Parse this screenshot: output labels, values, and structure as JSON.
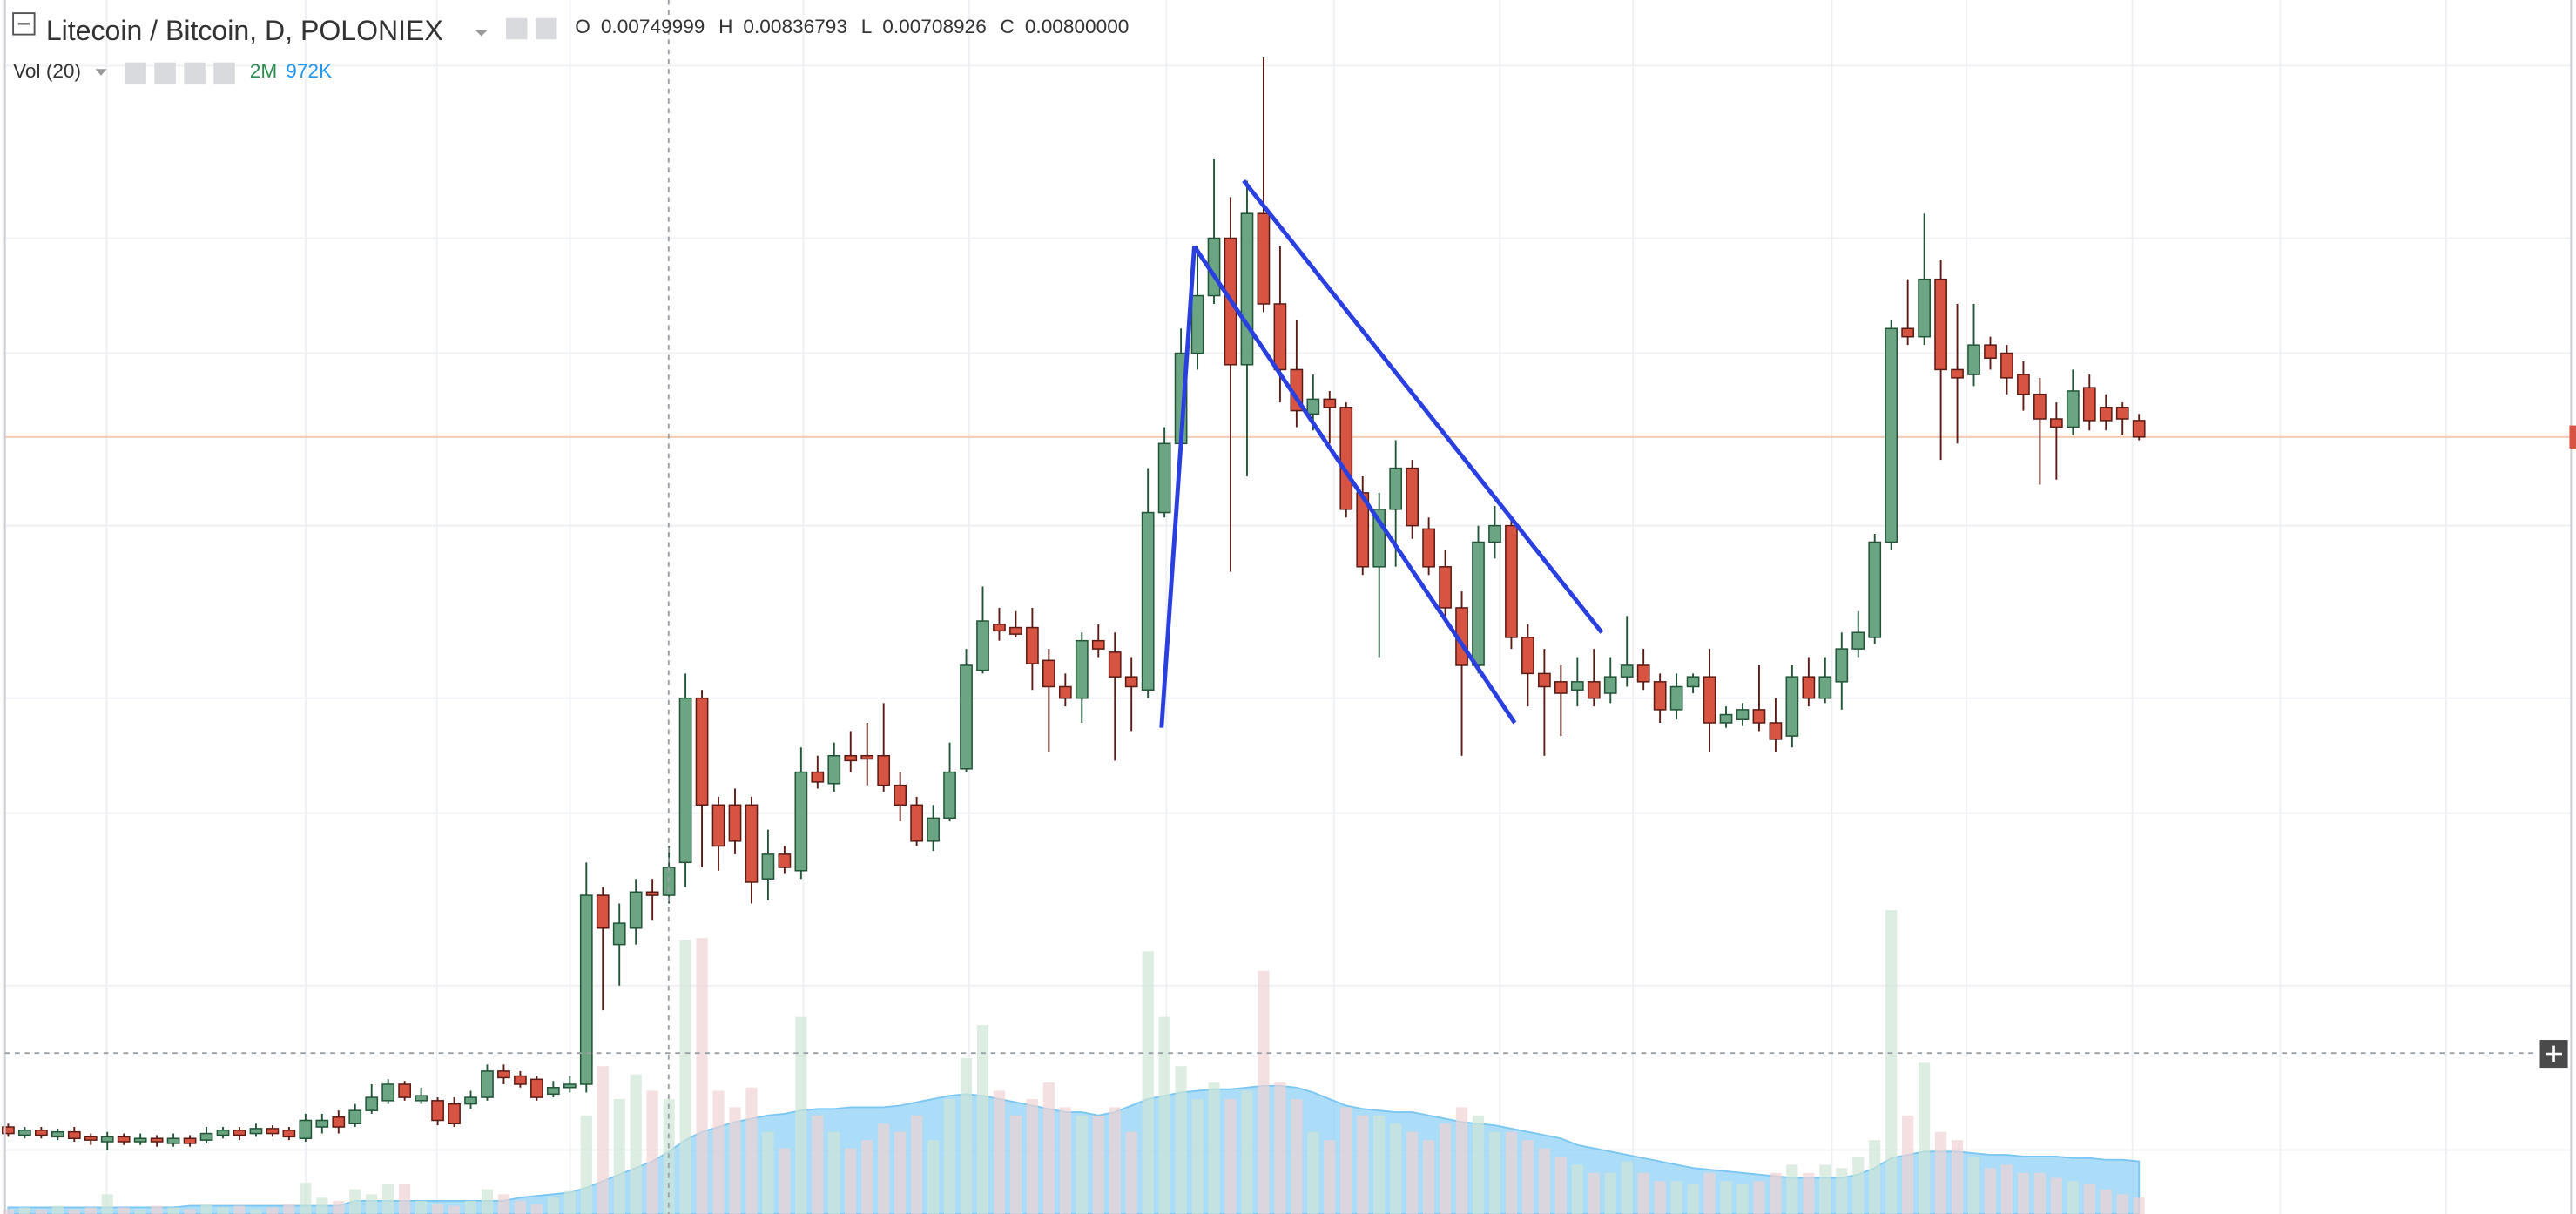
{
  "chart_data": {
    "type": "candlestick",
    "title": "Litecoin / Bitcoin, D, POLONIEX",
    "legend": {
      "ohlc": [
        {
          "label": "O",
          "value": "0.00749999"
        },
        {
          "label": "H",
          "value": "0.00836793"
        },
        {
          "label": "L",
          "value": "0.00708926"
        },
        {
          "label": "C",
          "value": "0.00800000"
        }
      ],
      "volume_title": "Vol (20)",
      "volume_values": [
        "2M",
        "972K"
      ]
    },
    "ylim": [
      0.00233,
      0.0245
    ],
    "y2lim": [
      0,
      18475000
    ],
    "colors": {
      "up": "#6ba583",
      "down": "#d75442",
      "up_border": "#225437",
      "down_border": "#5b1a13",
      "volume_up": "#cfe6d6",
      "volume_down": "#f0d3d3",
      "volume_ma": "#8fd0f5",
      "trendline": "#2a3fe0",
      "last_price": "#f0c8b0"
    },
    "ohlc": [
      [
        0.00392,
        0.00398,
        0.00374,
        0.0038
      ],
      [
        0.00377,
        0.00392,
        0.00371,
        0.00386
      ],
      [
        0.00386,
        0.00392,
        0.00371,
        0.00377
      ],
      [
        0.00374,
        0.00389,
        0.00368,
        0.00383
      ],
      [
        0.00383,
        0.00392,
        0.00365,
        0.00371
      ],
      [
        0.00374,
        0.0038,
        0.00359,
        0.00368
      ],
      [
        0.00365,
        0.00383,
        0.0035,
        0.00374
      ],
      [
        0.00374,
        0.0038,
        0.00359,
        0.00365
      ],
      [
        0.00365,
        0.0038,
        0.00359,
        0.00371
      ],
      [
        0.00371,
        0.00377,
        0.00356,
        0.00365
      ],
      [
        0.00362,
        0.0038,
        0.00356,
        0.00371
      ],
      [
        0.00371,
        0.00377,
        0.00356,
        0.00362
      ],
      [
        0.00368,
        0.00392,
        0.00362,
        0.0038
      ],
      [
        0.00377,
        0.00392,
        0.00371,
        0.00386
      ],
      [
        0.00386,
        0.00392,
        0.00368,
        0.00377
      ],
      [
        0.0038,
        0.00398,
        0.00374,
        0.00389
      ],
      [
        0.00389,
        0.00395,
        0.00374,
        0.0038
      ],
      [
        0.00386,
        0.00392,
        0.00368,
        0.00374
      ],
      [
        0.00371,
        0.00416,
        0.00365,
        0.00404
      ],
      [
        0.00392,
        0.00416,
        0.0038,
        0.00404
      ],
      [
        0.0041,
        0.00422,
        0.0038,
        0.00392
      ],
      [
        0.00398,
        0.00434,
        0.00392,
        0.00422
      ],
      [
        0.00422,
        0.0047,
        0.00416,
        0.00446
      ],
      [
        0.0044,
        0.00479,
        0.00434,
        0.0047
      ],
      [
        0.0047,
        0.00476,
        0.0044,
        0.00446
      ],
      [
        0.0044,
        0.00464,
        0.00434,
        0.00449
      ],
      [
        0.0044,
        0.00446,
        0.00395,
        0.00404
      ],
      [
        0.00434,
        0.00446,
        0.00392,
        0.00398
      ],
      [
        0.00434,
        0.00458,
        0.00425,
        0.00446
      ],
      [
        0.00446,
        0.00506,
        0.0044,
        0.00494
      ],
      [
        0.00494,
        0.00506,
        0.0047,
        0.00482
      ],
      [
        0.00485,
        0.00494,
        0.00464,
        0.0047
      ],
      [
        0.00479,
        0.00485,
        0.0044,
        0.00446
      ],
      [
        0.00452,
        0.00476,
        0.00446,
        0.00464
      ],
      [
        0.00464,
        0.00485,
        0.00455,
        0.0047
      ],
      [
        0.0047,
        0.00875,
        0.00455,
        0.00815
      ],
      [
        0.00815,
        0.0083,
        0.00605,
        0.00755
      ],
      [
        0.00725,
        0.008,
        0.0065,
        0.00764
      ],
      [
        0.00755,
        0.00845,
        0.00725,
        0.00821
      ],
      [
        0.00821,
        0.00845,
        0.0077,
        0.00815
      ],
      [
        0.00815,
        0.00905,
        0.008,
        0.00866
      ],
      [
        0.00875,
        0.0122,
        0.0083,
        0.01175
      ],
      [
        0.01175,
        0.0119,
        0.00866,
        0.0098
      ],
      [
        0.0098,
        0.00995,
        0.0086,
        0.00905
      ],
      [
        0.0098,
        0.0101,
        0.0089,
        0.00914
      ],
      [
        0.0098,
        0.00995,
        0.008,
        0.00839
      ],
      [
        0.00845,
        0.00935,
        0.00806,
        0.0089
      ],
      [
        0.0089,
        0.00905,
        0.00854,
        0.00866
      ],
      [
        0.0086,
        0.01085,
        0.00845,
        0.0104
      ],
      [
        0.0104,
        0.0107,
        0.0101,
        0.01022
      ],
      [
        0.01019,
        0.01094,
        0.01004,
        0.0107
      ],
      [
        0.0107,
        0.01115,
        0.0104,
        0.01061
      ],
      [
        0.0107,
        0.0113,
        0.01016,
        0.01064
      ],
      [
        0.0107,
        0.01166,
        0.01004,
        0.01016
      ],
      [
        0.01016,
        0.0104,
        0.0095,
        0.0098
      ],
      [
        0.0098,
        0.00995,
        0.00905,
        0.00914
      ],
      [
        0.00914,
        0.0098,
        0.00896,
        0.00956
      ],
      [
        0.00956,
        0.01094,
        0.0095,
        0.0104
      ],
      [
        0.01046,
        0.01265,
        0.0104,
        0.01235
      ],
      [
        0.01226,
        0.01379,
        0.0122,
        0.01316
      ],
      [
        0.0131,
        0.0134,
        0.0128,
        0.01298
      ],
      [
        0.01304,
        0.01334,
        0.01286,
        0.01292
      ],
      [
        0.01304,
        0.0134,
        0.0119,
        0.01238
      ],
      [
        0.01244,
        0.01265,
        0.01076,
        0.01196
      ],
      [
        0.01196,
        0.0122,
        0.0116,
        0.01175
      ],
      [
        0.01175,
        0.01295,
        0.0113,
        0.0128
      ],
      [
        0.0128,
        0.0131,
        0.0125,
        0.01265
      ],
      [
        0.01259,
        0.01295,
        0.01061,
        0.01214
      ],
      [
        0.01214,
        0.0125,
        0.01115,
        0.01196
      ],
      [
        0.0119,
        0.01595,
        0.01175,
        0.01514
      ],
      [
        0.01514,
        0.0167,
        0.01505,
        0.0164
      ],
      [
        0.0164,
        0.0185,
        0.01625,
        0.01805
      ],
      [
        0.01805,
        0.02,
        0.01775,
        0.0191
      ],
      [
        0.0191,
        0.02159,
        0.01895,
        0.02015
      ],
      [
        0.02015,
        0.0209,
        0.01406,
        0.01784
      ],
      [
        0.01784,
        0.0212,
        0.0158,
        0.0206
      ],
      [
        0.0206,
        0.02345,
        0.0188,
        0.01895
      ],
      [
        0.01895,
        0.02,
        0.01715,
        0.01775
      ],
      [
        0.01775,
        0.01865,
        0.0167,
        0.017
      ],
      [
        0.01694,
        0.01766,
        0.01664,
        0.01721
      ],
      [
        0.01721,
        0.01736,
        0.0164,
        0.01706
      ],
      [
        0.01706,
        0.01715,
        0.01505,
        0.0152
      ],
      [
        0.0155,
        0.0158,
        0.014,
        0.01415
      ],
      [
        0.01415,
        0.0155,
        0.0125,
        0.0152
      ],
      [
        0.0152,
        0.01646,
        0.01415,
        0.01595
      ],
      [
        0.01595,
        0.0161,
        0.01466,
        0.0149
      ],
      [
        0.01484,
        0.01505,
        0.014,
        0.01415
      ],
      [
        0.01415,
        0.01445,
        0.01316,
        0.0134
      ],
      [
        0.0134,
        0.0137,
        0.0107,
        0.01235
      ],
      [
        0.01235,
        0.0149,
        0.0122,
        0.0146
      ],
      [
        0.0146,
        0.01526,
        0.0143,
        0.0149
      ],
      [
        0.0149,
        0.01505,
        0.01265,
        0.01286
      ],
      [
        0.01286,
        0.0131,
        0.0116,
        0.0122
      ],
      [
        0.0122,
        0.01265,
        0.0107,
        0.01196
      ],
      [
        0.01205,
        0.01235,
        0.01106,
        0.01184
      ],
      [
        0.0119,
        0.0125,
        0.0116,
        0.01205
      ],
      [
        0.01205,
        0.01265,
        0.0116,
        0.01175
      ],
      [
        0.01184,
        0.0125,
        0.01166,
        0.01214
      ],
      [
        0.01214,
        0.01325,
        0.01196,
        0.01235
      ],
      [
        0.01235,
        0.01265,
        0.0119,
        0.01205
      ],
      [
        0.01205,
        0.0122,
        0.0113,
        0.01154
      ],
      [
        0.01154,
        0.0122,
        0.01136,
        0.01196
      ],
      [
        0.01196,
        0.0122,
        0.01184,
        0.01214
      ],
      [
        0.01214,
        0.01265,
        0.01076,
        0.0113
      ],
      [
        0.0113,
        0.0116,
        0.01121,
        0.01145
      ],
      [
        0.01136,
        0.01166,
        0.01124,
        0.01154
      ],
      [
        0.01154,
        0.01235,
        0.01115,
        0.0113
      ],
      [
        0.0113,
        0.01175,
        0.01076,
        0.011
      ],
      [
        0.01106,
        0.01235,
        0.01085,
        0.01214
      ],
      [
        0.01214,
        0.0125,
        0.0116,
        0.01175
      ],
      [
        0.01175,
        0.0125,
        0.01166,
        0.01214
      ],
      [
        0.01205,
        0.01295,
        0.01154,
        0.01265
      ],
      [
        0.01265,
        0.01334,
        0.0125,
        0.01295
      ],
      [
        0.01286,
        0.01475,
        0.01274,
        0.0146
      ],
      [
        0.0146,
        0.01865,
        0.01445,
        0.0185
      ],
      [
        0.0185,
        0.0194,
        0.0182,
        0.01835
      ],
      [
        0.01835,
        0.0206,
        0.0182,
        0.0194
      ],
      [
        0.0194,
        0.01976,
        0.0161,
        0.01775
      ],
      [
        0.01775,
        0.01895,
        0.0164,
        0.0176
      ],
      [
        0.01766,
        0.01895,
        0.01745,
        0.0182
      ],
      [
        0.0182,
        0.01835,
        0.01775,
        0.01796
      ],
      [
        0.01805,
        0.0182,
        0.0173,
        0.0176
      ],
      [
        0.01766,
        0.0179,
        0.017,
        0.0173
      ],
      [
        0.0173,
        0.0176,
        0.01565,
        0.01685
      ],
      [
        0.01685,
        0.01715,
        0.01574,
        0.0167
      ],
      [
        0.0167,
        0.01775,
        0.01655,
        0.01736
      ],
      [
        0.01742,
        0.01766,
        0.01664,
        0.01682
      ],
      [
        0.01706,
        0.0173,
        0.01664,
        0.01682
      ],
      [
        0.01706,
        0.01715,
        0.01655,
        0.01685
      ],
      [
        0.01682,
        0.01694,
        0.01646,
        0.01652
      ]
    ],
    "volume": [
      75000,
      100000,
      75000,
      125000,
      75000,
      100000,
      300000,
      100000,
      75000,
      125000,
      100000,
      75000,
      150000,
      100000,
      125000,
      75000,
      100000,
      150000,
      475000,
      250000,
      200000,
      375000,
      300000,
      450000,
      450000,
      200000,
      150000,
      125000,
      200000,
      375000,
      300000,
      200000,
      150000,
      250000,
      350000,
      1500000,
      2250000,
      1750000,
      2125000,
      1875000,
      1750000,
      4175000,
      4200000,
      1875000,
      1625000,
      1925000,
      1250000,
      1000000,
      3000000,
      1500000,
      1250000,
      1000000,
      1125000,
      1375000,
      1250000,
      1500000,
      1125000,
      1750000,
      2375000,
      2875000,
      1875000,
      1500000,
      1750000,
      2000000,
      1625000,
      1500000,
      1500000,
      1625000,
      1250000,
      4000000,
      3000000,
      2250000,
      1750000,
      2000000,
      1750000,
      1875000,
      3700000,
      2000000,
      1750000,
      1250000,
      1125000,
      1625000,
      1500000,
      1500000,
      1375000,
      1250000,
      1125000,
      1375000,
      1625000,
      1500000,
      1250000,
      1250000,
      1125000,
      1000000,
      875000,
      750000,
      625000,
      625000,
      800000,
      625000,
      500000,
      500000,
      450000,
      625000,
      500000,
      450000,
      500000,
      625000,
      750000,
      625000,
      750000,
      700000,
      875000,
      1125000,
      4625000,
      1500000,
      2300000,
      1250000,
      1125000,
      875000,
      700000,
      750000,
      625000,
      625000,
      550000,
      500000,
      450000,
      375000,
      300000,
      250000
    ],
    "volume_ma": [
      100000,
      100000,
      100000,
      100000,
      100000,
      100000,
      100000,
      100000,
      100000,
      100000,
      100000,
      125000,
      125000,
      125000,
      125000,
      125000,
      125000,
      125000,
      125000,
      125000,
      125000,
      200000,
      200000,
      200000,
      200000,
      200000,
      200000,
      200000,
      200000,
      200000,
      200000,
      250000,
      275000,
      300000,
      325000,
      400000,
      500000,
      600000,
      700000,
      800000,
      950000,
      1125000,
      1250000,
      1325000,
      1400000,
      1450000,
      1500000,
      1525000,
      1575000,
      1600000,
      1600000,
      1625000,
      1625000,
      1625000,
      1650000,
      1700000,
      1750000,
      1800000,
      1825000,
      1800000,
      1750000,
      1700000,
      1650000,
      1600000,
      1550000,
      1550000,
      1500000,
      1550000,
      1650000,
      1750000,
      1800000,
      1850000,
      1875000,
      1900000,
      1900000,
      1925000,
      1950000,
      1950000,
      1925000,
      1850000,
      1750000,
      1650000,
      1600000,
      1575000,
      1550000,
      1550000,
      1500000,
      1450000,
      1400000,
      1375000,
      1350000,
      1300000,
      1250000,
      1200000,
      1150000,
      1050000,
      1000000,
      950000,
      900000,
      850000,
      800000,
      750000,
      700000,
      675000,
      650000,
      625000,
      600000,
      575000,
      550000,
      550000,
      550000,
      550000,
      600000,
      700000,
      850000,
      900000,
      950000,
      950000,
      950000,
      925000,
      900000,
      900000,
      875000,
      875000,
      875000,
      850000,
      850000,
      825000,
      825000,
      800000
    ]
  }
}
